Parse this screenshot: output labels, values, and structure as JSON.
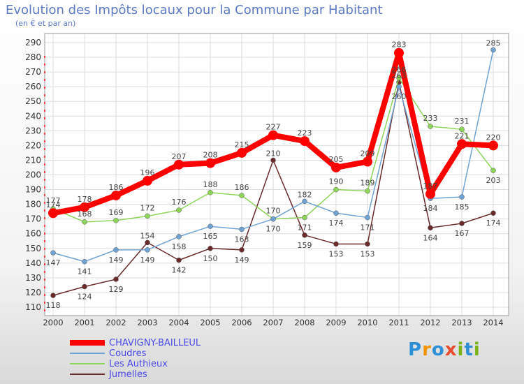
{
  "header": {
    "title": "Evolution des Impôts locaux pour la Commune par Habitant",
    "subtitle": "(en € et par an)"
  },
  "brand": {
    "name": "Proxiti",
    "letters": [
      "P",
      "r",
      "o",
      "x",
      "i",
      "t",
      "i"
    ],
    "colors": [
      "#2e8fd6",
      "#f29400",
      "#2e8fd6",
      "#e64c2e",
      "#7ab317",
      "#2e8fd6",
      "#7ab317"
    ]
  },
  "colors": {
    "title": "#5c79c4",
    "legend_text": "#4a4ae8",
    "axis_text": "#333333",
    "grid": "#dddddd",
    "label_text": "#444444"
  },
  "chart_data": {
    "type": "line",
    "title": "Evolution des Impôts locaux pour la Commune par Habitant",
    "subtitle": "(en € et par an)",
    "xlabel": "",
    "ylabel": "",
    "x": [
      "2000",
      "2001",
      "2002",
      "2003",
      "2004",
      "2005",
      "2006",
      "2007",
      "2008",
      "2009",
      "2010",
      "2011",
      "2012",
      "2013",
      "2014"
    ],
    "ylim": [
      110,
      290
    ],
    "yticks": [
      110,
      120,
      130,
      140,
      150,
      160,
      170,
      180,
      190,
      200,
      210,
      220,
      230,
      240,
      250,
      260,
      270,
      280,
      290
    ],
    "grid": true,
    "legend_position": "bottom-left",
    "series": [
      {
        "name": "CHAVIGNY-BAILLEUL",
        "color": "#ff0000",
        "values": [
          174,
          178,
          186,
          196,
          207,
          208,
          215,
          227,
          223,
          205,
          209,
          283,
          187,
          221,
          220
        ]
      },
      {
        "name": "Coudres",
        "color": "#6fa3d4",
        "values": [
          147,
          141,
          149,
          149,
          158,
          165,
          163,
          170,
          182,
          174,
          171,
          260,
          184,
          185,
          285
        ]
      },
      {
        "name": "Les Authieux",
        "color": "#8ed65a",
        "values": [
          177,
          168,
          169,
          172,
          176,
          188,
          186,
          170,
          171,
          190,
          189,
          266,
          233,
          231,
          203
        ]
      },
      {
        "name": "Jumelles",
        "color": "#6b2a2a",
        "values": [
          118,
          124,
          129,
          154,
          142,
          150,
          149,
          210,
          159,
          153,
          153,
          263,
          164,
          167,
          174
        ]
      }
    ]
  }
}
